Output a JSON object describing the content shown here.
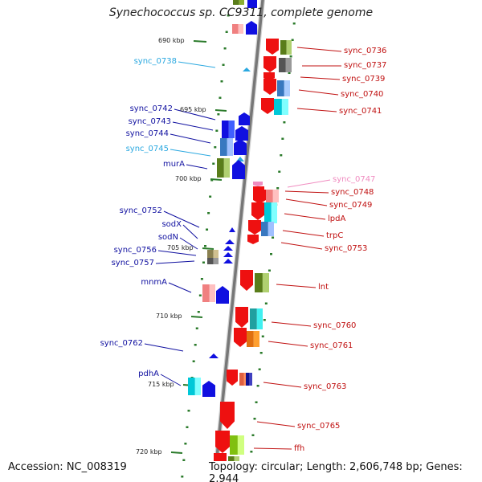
{
  "header": {
    "title": "Synechococcus sp. CC9311, complete genome"
  },
  "footer": {
    "accession": "Accession: NC_008319",
    "topology": "Topology: circular; Length: 2,606,748 bp; Genes: 2,944"
  },
  "colors": {
    "reverse_label": "#1010a0",
    "forward_label": "#c01010",
    "rna_label": "#2aa8e0",
    "pink_label": "#f08cc0",
    "axis": "#777777",
    "tick": "#2a7a2a"
  },
  "kbp_marks": [
    {
      "text": "690 kbp"
    },
    {
      "text": "695 kbp"
    },
    {
      "text": "700 kbp"
    },
    {
      "text": "705 kbp"
    },
    {
      "text": "710 kbp"
    },
    {
      "text": "715 kbp"
    },
    {
      "text": "720 kbp"
    }
  ],
  "labels_left": [
    {
      "text": "sync_0738",
      "color": "#2aa8e0"
    },
    {
      "text": "sync_0742",
      "color": "#1010a0"
    },
    {
      "text": "sync_0743",
      "color": "#1010a0"
    },
    {
      "text": "sync_0744",
      "color": "#1010a0"
    },
    {
      "text": "sync_0745",
      "color": "#2aa8e0"
    },
    {
      "text": "murA",
      "color": "#1010a0"
    },
    {
      "text": "sync_0752",
      "color": "#1010a0"
    },
    {
      "text": "sodX",
      "color": "#1010a0"
    },
    {
      "text": "sodN",
      "color": "#1010a0"
    },
    {
      "text": "sync_0756",
      "color": "#1010a0"
    },
    {
      "text": "sync_0757",
      "color": "#1010a0"
    },
    {
      "text": "mnmA",
      "color": "#1010a0"
    },
    {
      "text": "sync_0762",
      "color": "#1010a0"
    },
    {
      "text": "pdhA",
      "color": "#1010a0"
    }
  ],
  "labels_right": [
    {
      "text": "sync_0736",
      "color": "#c01010"
    },
    {
      "text": "sync_0737",
      "color": "#c01010"
    },
    {
      "text": "sync_0739",
      "color": "#c01010"
    },
    {
      "text": "sync_0740",
      "color": "#c01010"
    },
    {
      "text": "sync_0741",
      "color": "#c01010"
    },
    {
      "text": "sync_0747",
      "color": "#f08cc0"
    },
    {
      "text": "sync_0748",
      "color": "#c01010"
    },
    {
      "text": "sync_0749",
      "color": "#c01010"
    },
    {
      "text": "lpdA",
      "color": "#c01010"
    },
    {
      "text": "trpC",
      "color": "#c01010"
    },
    {
      "text": "sync_0753",
      "color": "#c01010"
    },
    {
      "text": "lnt",
      "color": "#c01010"
    },
    {
      "text": "sync_0760",
      "color": "#c01010"
    },
    {
      "text": "sync_0761",
      "color": "#c01010"
    },
    {
      "text": "sync_0763",
      "color": "#c01010"
    },
    {
      "text": "sync_0765",
      "color": "#c01010"
    },
    {
      "text": "ffh",
      "color": "#c01010"
    }
  ]
}
